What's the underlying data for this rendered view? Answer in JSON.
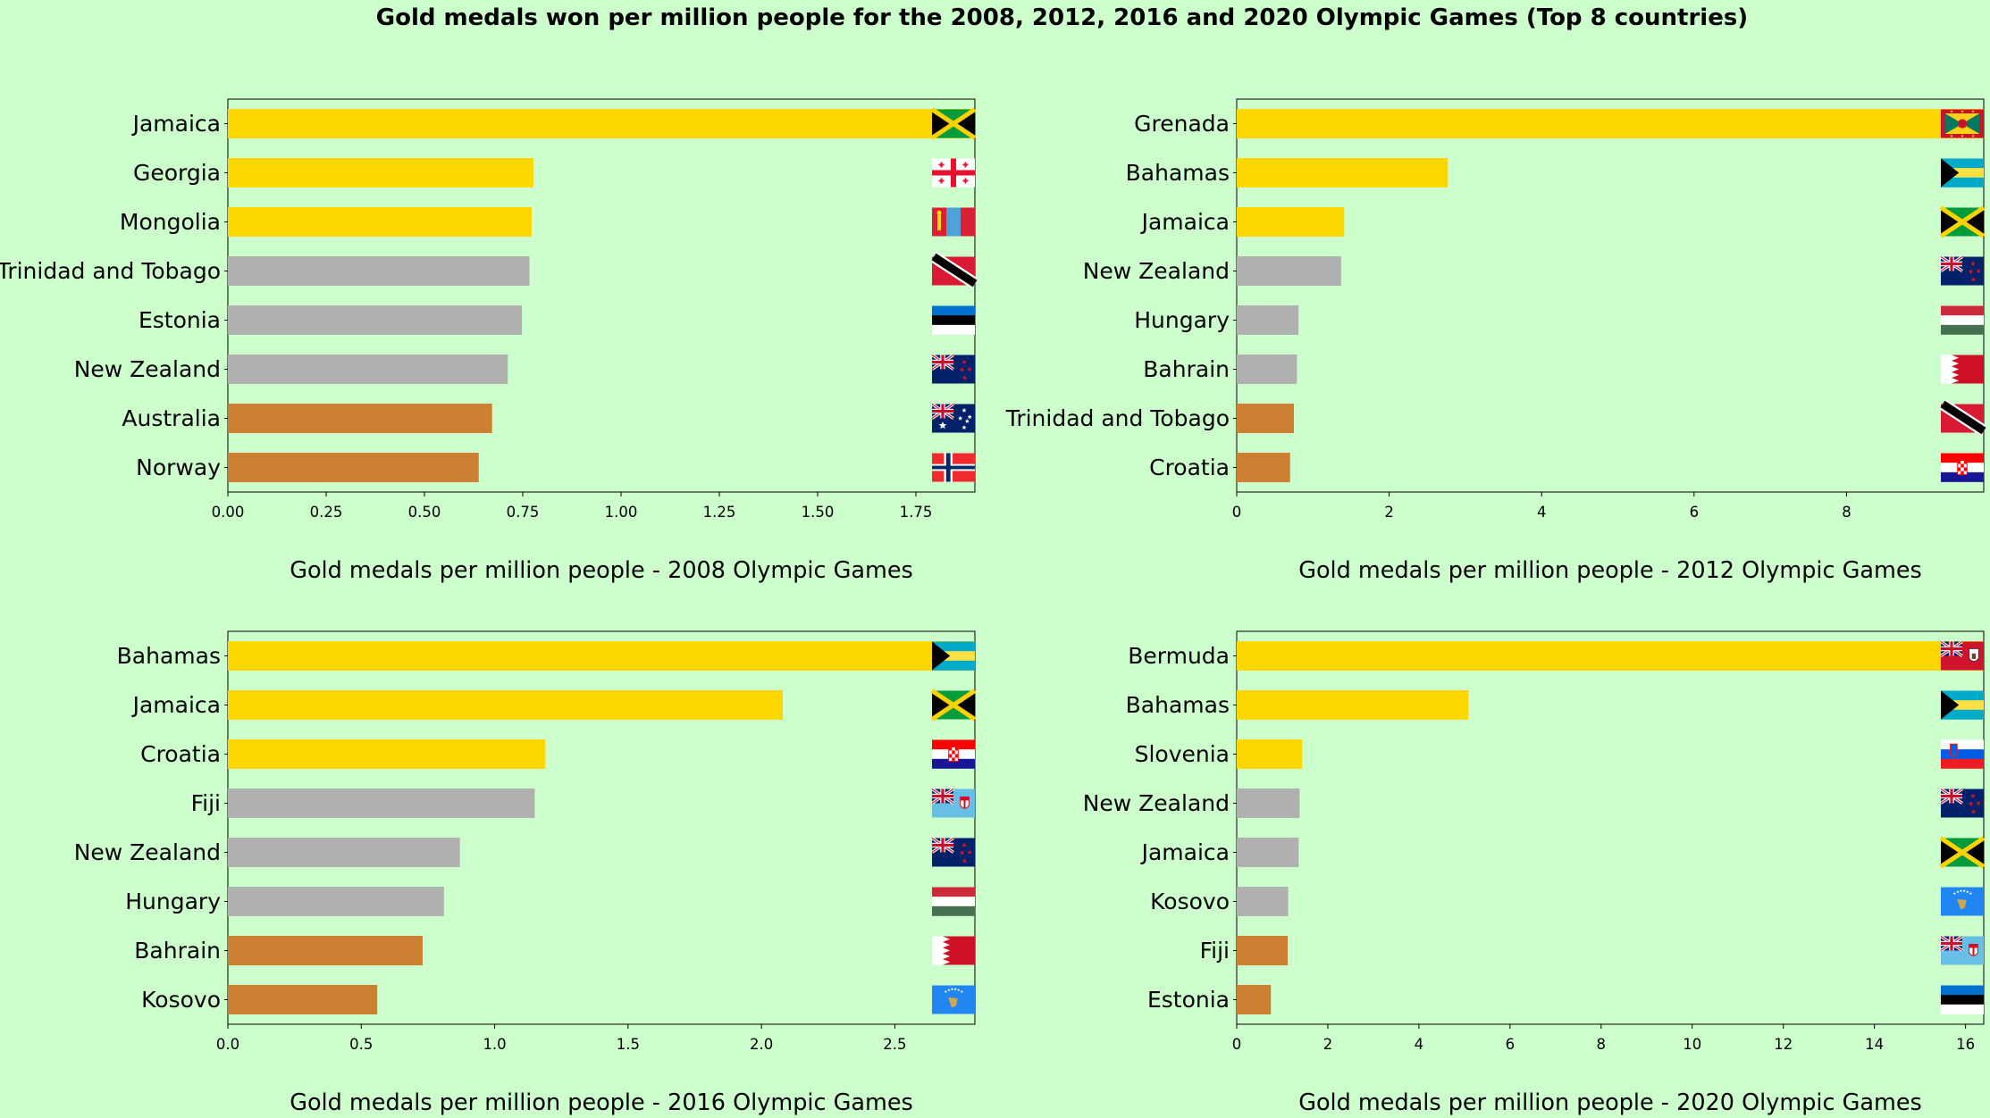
{
  "title": "Gold medals won per million people for the 2008, 2012, 2016 and 2020 Olympic Games (Top 8 countries)",
  "colors": {
    "background": "#ccffcc",
    "gold": "#ffd700",
    "silver": "#b0b0b0",
    "bronze": "#cd7f32"
  },
  "chart_data": [
    {
      "type": "bar",
      "orientation": "horizontal",
      "xlabel": "Gold medals per million people - 2008 Olympic Games",
      "xlim": [
        0,
        1.9
      ],
      "xticks": [
        "0.00",
        "0.25",
        "0.50",
        "0.75",
        "1.00",
        "1.25",
        "1.50",
        "1.75"
      ],
      "categories": [
        "Jamaica",
        "Georgia",
        "Mongolia",
        "Trinidad and Tobago",
        "Estonia",
        "New Zealand",
        "Australia",
        "Norway"
      ],
      "values": [
        1.9,
        0.777,
        0.773,
        0.767,
        0.748,
        0.712,
        0.672,
        0.638
      ],
      "flags": [
        "jamaica-flag",
        "georgia-flag",
        "mongolia-flag",
        "trinidad-and-tobago-flag",
        "estonia-flag",
        "new-zealand-flag",
        "australia-flag",
        "norway-flag"
      ],
      "bar_tiers": [
        "gold",
        "gold",
        "gold",
        "silver",
        "silver",
        "silver",
        "bronze",
        "bronze"
      ]
    },
    {
      "type": "bar",
      "orientation": "horizontal",
      "xlabel": "Gold medals per million people - 2012 Olympic Games",
      "xlim": [
        0,
        9.8
      ],
      "xticks": [
        "0",
        "2",
        "4",
        "6",
        "8"
      ],
      "categories": [
        "Grenada",
        "Bahamas",
        "Jamaica",
        "New Zealand",
        "Hungary",
        "Bahrain",
        "Trinidad and Tobago",
        "Croatia"
      ],
      "values": [
        9.8,
        2.77,
        1.41,
        1.37,
        0.81,
        0.79,
        0.75,
        0.7
      ],
      "flags": [
        "grenada-flag",
        "bahamas-flag",
        "jamaica-flag",
        "new-zealand-flag",
        "hungary-flag",
        "bahrain-flag",
        "trinidad-and-tobago-flag",
        "croatia-flag"
      ],
      "bar_tiers": [
        "gold",
        "gold",
        "gold",
        "silver",
        "silver",
        "silver",
        "bronze",
        "bronze"
      ]
    },
    {
      "type": "bar",
      "orientation": "horizontal",
      "xlabel": "Gold medals per million people - 2016 Olympic Games",
      "xlim": [
        0,
        2.8
      ],
      "xticks": [
        "0.0",
        "0.5",
        "1.0",
        "1.5",
        "2.0",
        "2.5"
      ],
      "categories": [
        "Bahamas",
        "Jamaica",
        "Croatia",
        "Fiji",
        "New Zealand",
        "Hungary",
        "Bahrain",
        "Kosovo"
      ],
      "values": [
        2.8,
        2.08,
        1.19,
        1.15,
        0.87,
        0.81,
        0.73,
        0.56
      ],
      "flags": [
        "bahamas-flag",
        "jamaica-flag",
        "croatia-flag",
        "fiji-flag",
        "new-zealand-flag",
        "hungary-flag",
        "bahrain-flag",
        "kosovo-flag"
      ],
      "bar_tiers": [
        "gold",
        "gold",
        "gold",
        "silver",
        "silver",
        "silver",
        "bronze",
        "bronze"
      ]
    },
    {
      "type": "bar",
      "orientation": "horizontal",
      "xlabel": "Gold medals per million people - 2020 Olympic Games",
      "xlim": [
        0,
        16.4
      ],
      "xticks": [
        "0",
        "2",
        "4",
        "6",
        "8",
        "10",
        "12",
        "14",
        "16"
      ],
      "categories": [
        "Bermuda",
        "Bahamas",
        "Slovenia",
        "New Zealand",
        "Jamaica",
        "Kosovo",
        "Fiji",
        "Estonia"
      ],
      "values": [
        16.4,
        5.09,
        1.44,
        1.38,
        1.36,
        1.13,
        1.12,
        0.75
      ],
      "flags": [
        "bermuda-flag",
        "bahamas-flag",
        "slovenia-flag",
        "new-zealand-flag",
        "jamaica-flag",
        "kosovo-flag",
        "fiji-flag",
        "estonia-flag"
      ],
      "bar_tiers": [
        "gold",
        "gold",
        "gold",
        "silver",
        "silver",
        "silver",
        "bronze",
        "bronze"
      ]
    }
  ]
}
